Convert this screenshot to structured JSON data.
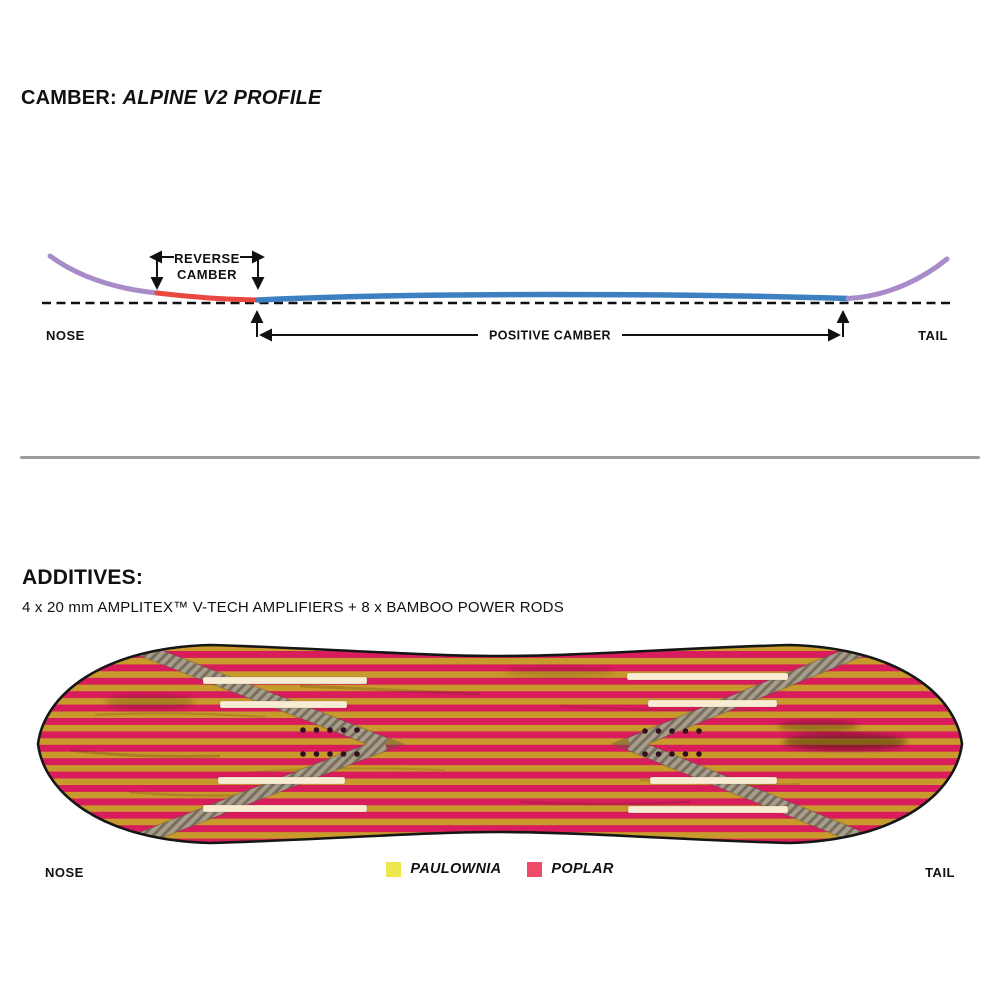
{
  "camber": {
    "title_label": "CAMBER:",
    "title_value": "ALPINE V2 PROFILE",
    "reverse_camber_line1": "REVERSE",
    "reverse_camber_line2": "CAMBER",
    "positive_camber_label": "POSITIVE CAMBER",
    "nose_label": "NOSE",
    "tail_label": "TAIL",
    "colors": {
      "nose_tail_curve": "#a98bc9",
      "reverse_camber_curve": "#e8483f",
      "positive_camber_curve": "#3d80c2",
      "annotation": "#111111"
    }
  },
  "additives": {
    "title": "ADDITIVES:",
    "description": "4 x 20 mm  AMPLITEX™ V-TECH AMPLIFIERS + 8 x BAMBOO POWER RODS",
    "nose_label": "NOSE",
    "tail_label": "TAIL",
    "legend": [
      {
        "label": "PAULOWNIA",
        "color": "#ede74d"
      },
      {
        "label": "POPLAR",
        "color": "#ee4a6a"
      }
    ],
    "board": {
      "poplar_stripe_color": "#d91c5c",
      "paulownia_stripe_color": "#c8992b",
      "amplifier_color": "#f8edd3",
      "bamboo_rod_base_color": "#a79d8b",
      "bamboo_rod_shadow_color": "#6d6352",
      "insert_dot_color": "#30101f",
      "outline_color": "#161616"
    }
  }
}
